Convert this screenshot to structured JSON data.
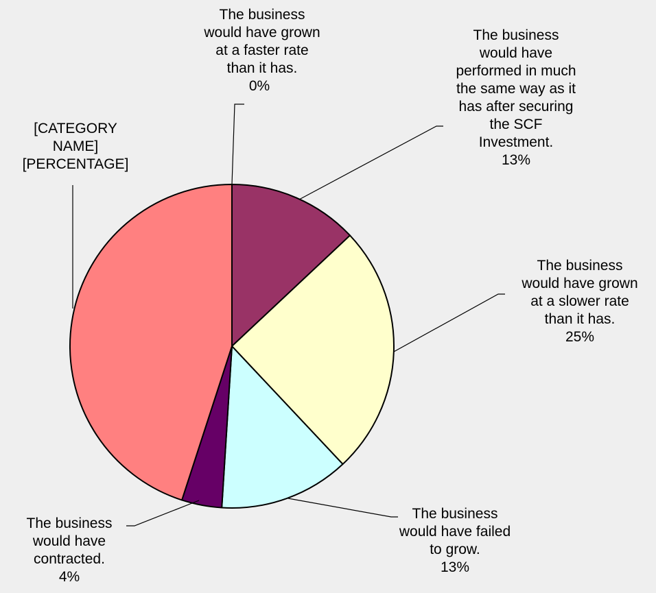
{
  "chart_data": {
    "type": "pie",
    "title": "",
    "slices": [
      {
        "label": "The business would have grown at a faster rate than it has.",
        "value": 0,
        "value_label": "0%",
        "color": "#993366"
      },
      {
        "label": "The business would have performed in much the same way as it has after securing the SCF Investment.",
        "value": 13,
        "value_label": "13%",
        "color": "#993366"
      },
      {
        "label": "The business would have grown at a slower rate than it has.",
        "value": 25,
        "value_label": "25%",
        "color": "#ffffcc"
      },
      {
        "label": "The business would have failed to grow.",
        "value": 13,
        "value_label": "13%",
        "color": "#ccffff"
      },
      {
        "label": "The business would have contracted.",
        "value": 4,
        "value_label": "4%",
        "color": "#660066"
      },
      {
        "label": "[CATEGORY NAME]",
        "value": 45,
        "value_label": "[PERCENTAGE]",
        "color": "#ff8080"
      }
    ]
  }
}
